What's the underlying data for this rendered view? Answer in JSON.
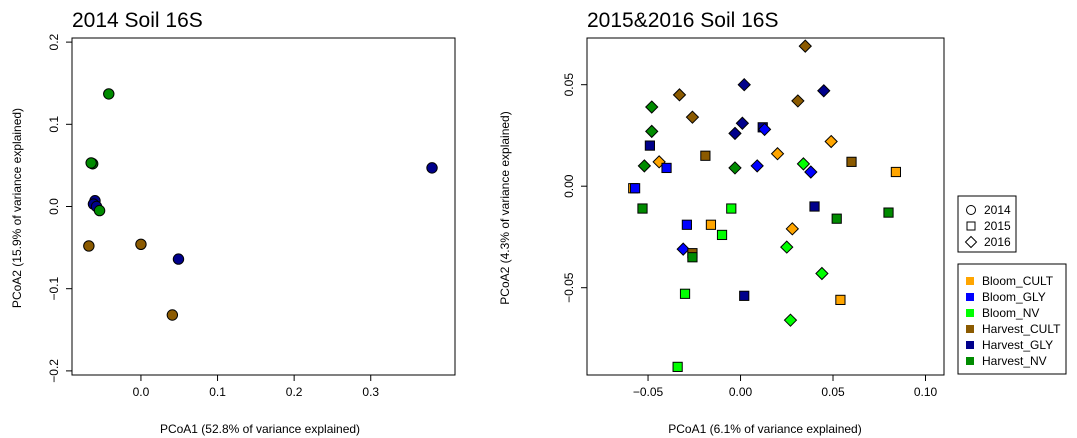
{
  "chart_data": [
    {
      "type": "scatter",
      "title": "2014 Soil 16S",
      "xlabel": "PCoA1 (52.8% of variance explained)",
      "ylabel": "PCoA2 (15.9% of variance explained)",
      "xlim": [
        -0.09,
        0.41
      ],
      "ylim": [
        -0.205,
        0.205
      ],
      "xticks": [
        0.0,
        0.1,
        0.2,
        0.3
      ],
      "xtick_labels": [
        "0.0",
        "0.1",
        "0.2",
        "0.3"
      ],
      "yticks": [
        -0.2,
        -0.1,
        0.0,
        0.1,
        0.2
      ],
      "ytick_labels": [
        "−0.2",
        "−0.1",
        "0.0",
        "0.1",
        "0.2"
      ],
      "points": [
        {
          "x": -0.042,
          "y": 0.137,
          "group": "Harvest_NV",
          "year": "2014"
        },
        {
          "x": -0.063,
          "y": 0.052,
          "group": "Harvest_NV",
          "year": "2014"
        },
        {
          "x": -0.065,
          "y": 0.053,
          "group": "Harvest_NV",
          "year": "2014"
        },
        {
          "x": -0.06,
          "y": 0.007,
          "group": "Harvest_GLY",
          "year": "2014"
        },
        {
          "x": -0.062,
          "y": 0.003,
          "group": "Harvest_GLY",
          "year": "2014"
        },
        {
          "x": -0.058,
          "y": 0.0,
          "group": "Harvest_GLY",
          "year": "2014"
        },
        {
          "x": -0.054,
          "y": -0.005,
          "group": "Harvest_NV",
          "year": "2014"
        },
        {
          "x": -0.068,
          "y": -0.048,
          "group": "Harvest_CULT",
          "year": "2014"
        },
        {
          "x": 0.0,
          "y": -0.046,
          "group": "Harvest_CULT",
          "year": "2014"
        },
        {
          "x": 0.049,
          "y": -0.064,
          "group": "Harvest_GLY",
          "year": "2014"
        },
        {
          "x": 0.041,
          "y": -0.132,
          "group": "Harvest_CULT",
          "year": "2014"
        },
        {
          "x": 0.38,
          "y": 0.047,
          "group": "Harvest_GLY",
          "year": "2014"
        }
      ]
    },
    {
      "type": "scatter",
      "title": "2015&2016 Soil 16S",
      "xlabel": "PCoA1 (6.1% of variance explained)",
      "ylabel": "PCoA2 (4.3% of variance explained)",
      "xlim": [
        -0.083,
        0.11
      ],
      "ylim": [
        -0.093,
        0.073
      ],
      "xticks": [
        -0.05,
        0.0,
        0.05,
        0.1
      ],
      "xtick_labels": [
        "−0.05",
        "0.00",
        "0.05",
        "0.10"
      ],
      "yticks": [
        -0.05,
        0.0,
        0.05
      ],
      "ytick_labels": [
        "−0.05",
        "0.00",
        "0.05"
      ],
      "legend_years": {
        "entries": [
          {
            "label": "2014",
            "shape": "circle"
          },
          {
            "label": "2015",
            "shape": "square"
          },
          {
            "label": "2016",
            "shape": "diamond"
          }
        ]
      },
      "legend_groups": {
        "entries": [
          {
            "label": "Bloom_CULT",
            "color": "#ffa500"
          },
          {
            "label": "Bloom_GLY",
            "color": "#0000ff"
          },
          {
            "label": "Bloom_NV",
            "color": "#00ff00"
          },
          {
            "label": "Harvest_CULT",
            "color": "#8b5a00"
          },
          {
            "label": "Harvest_GLY",
            "color": "#00008b"
          },
          {
            "label": "Harvest_NV",
            "color": "#008b00"
          }
        ]
      },
      "points": [
        {
          "x": 0.035,
          "y": 0.069,
          "group": "Harvest_CULT",
          "year": "2016"
        },
        {
          "x": 0.002,
          "y": 0.05,
          "group": "Harvest_GLY",
          "year": "2016"
        },
        {
          "x": 0.045,
          "y": 0.047,
          "group": "Harvest_GLY",
          "year": "2016"
        },
        {
          "x": -0.033,
          "y": 0.045,
          "group": "Harvest_CULT",
          "year": "2016"
        },
        {
          "x": 0.031,
          "y": 0.042,
          "group": "Harvest_CULT",
          "year": "2016"
        },
        {
          "x": -0.048,
          "y": 0.039,
          "group": "Harvest_NV",
          "year": "2016"
        },
        {
          "x": -0.026,
          "y": 0.034,
          "group": "Harvest_CULT",
          "year": "2016"
        },
        {
          "x": 0.001,
          "y": 0.031,
          "group": "Harvest_GLY",
          "year": "2016"
        },
        {
          "x": 0.012,
          "y": 0.029,
          "group": "Harvest_GLY",
          "year": "2015"
        },
        {
          "x": 0.013,
          "y": 0.028,
          "group": "Bloom_GLY",
          "year": "2016"
        },
        {
          "x": -0.048,
          "y": 0.027,
          "group": "Harvest_NV",
          "year": "2016"
        },
        {
          "x": -0.003,
          "y": 0.026,
          "group": "Harvest_GLY",
          "year": "2016"
        },
        {
          "x": 0.049,
          "y": 0.022,
          "group": "Bloom_CULT",
          "year": "2016"
        },
        {
          "x": -0.049,
          "y": 0.02,
          "group": "Harvest_GLY",
          "year": "2015"
        },
        {
          "x": 0.02,
          "y": 0.016,
          "group": "Bloom_CULT",
          "year": "2016"
        },
        {
          "x": -0.019,
          "y": 0.015,
          "group": "Harvest_CULT",
          "year": "2015"
        },
        {
          "x": -0.044,
          "y": 0.012,
          "group": "Bloom_CULT",
          "year": "2016"
        },
        {
          "x": 0.06,
          "y": 0.012,
          "group": "Harvest_CULT",
          "year": "2015"
        },
        {
          "x": 0.034,
          "y": 0.011,
          "group": "Bloom_NV",
          "year": "2016"
        },
        {
          "x": -0.052,
          "y": 0.01,
          "group": "Harvest_NV",
          "year": "2016"
        },
        {
          "x": 0.009,
          "y": 0.01,
          "group": "Bloom_GLY",
          "year": "2016"
        },
        {
          "x": -0.04,
          "y": 0.009,
          "group": "Bloom_GLY",
          "year": "2015"
        },
        {
          "x": -0.003,
          "y": 0.009,
          "group": "Harvest_NV",
          "year": "2016"
        },
        {
          "x": 0.038,
          "y": 0.007,
          "group": "Bloom_GLY",
          "year": "2016"
        },
        {
          "x": 0.084,
          "y": 0.007,
          "group": "Bloom_CULT",
          "year": "2015"
        },
        {
          "x": -0.058,
          "y": -0.001,
          "group": "Bloom_CULT",
          "year": "2015"
        },
        {
          "x": -0.057,
          "y": -0.001,
          "group": "Bloom_GLY",
          "year": "2015"
        },
        {
          "x": 0.04,
          "y": -0.01,
          "group": "Harvest_GLY",
          "year": "2015"
        },
        {
          "x": -0.053,
          "y": -0.011,
          "group": "Harvest_NV",
          "year": "2015"
        },
        {
          "x": -0.005,
          "y": -0.011,
          "group": "Bloom_NV",
          "year": "2015"
        },
        {
          "x": 0.08,
          "y": -0.013,
          "group": "Harvest_NV",
          "year": "2015"
        },
        {
          "x": 0.052,
          "y": -0.016,
          "group": "Harvest_NV",
          "year": "2015"
        },
        {
          "x": -0.029,
          "y": -0.019,
          "group": "Bloom_GLY",
          "year": "2015"
        },
        {
          "x": -0.016,
          "y": -0.019,
          "group": "Bloom_CULT",
          "year": "2015"
        },
        {
          "x": 0.028,
          "y": -0.021,
          "group": "Bloom_CULT",
          "year": "2016"
        },
        {
          "x": -0.01,
          "y": -0.024,
          "group": "Bloom_NV",
          "year": "2015"
        },
        {
          "x": 0.025,
          "y": -0.03,
          "group": "Bloom_NV",
          "year": "2016"
        },
        {
          "x": -0.031,
          "y": -0.031,
          "group": "Bloom_GLY",
          "year": "2016"
        },
        {
          "x": -0.026,
          "y": -0.033,
          "group": "Harvest_CULT",
          "year": "2015"
        },
        {
          "x": -0.026,
          "y": -0.035,
          "group": "Harvest_NV",
          "year": "2015"
        },
        {
          "x": 0.044,
          "y": -0.043,
          "group": "Bloom_NV",
          "year": "2016"
        },
        {
          "x": -0.03,
          "y": -0.053,
          "group": "Bloom_NV",
          "year": "2015"
        },
        {
          "x": 0.002,
          "y": -0.054,
          "group": "Harvest_GLY",
          "year": "2015"
        },
        {
          "x": 0.054,
          "y": -0.056,
          "group": "Bloom_CULT",
          "year": "2015"
        },
        {
          "x": 0.027,
          "y": -0.066,
          "group": "Bloom_NV",
          "year": "2016"
        },
        {
          "x": -0.034,
          "y": -0.089,
          "group": "Bloom_NV",
          "year": "2015"
        }
      ]
    }
  ],
  "colors": {
    "Bloom_CULT": "#ffa500",
    "Bloom_GLY": "#0000ff",
    "Bloom_NV": "#00ff00",
    "Harvest_CULT": "#8b5a00",
    "Harvest_GLY": "#00008b",
    "Harvest_NV": "#008b00"
  }
}
